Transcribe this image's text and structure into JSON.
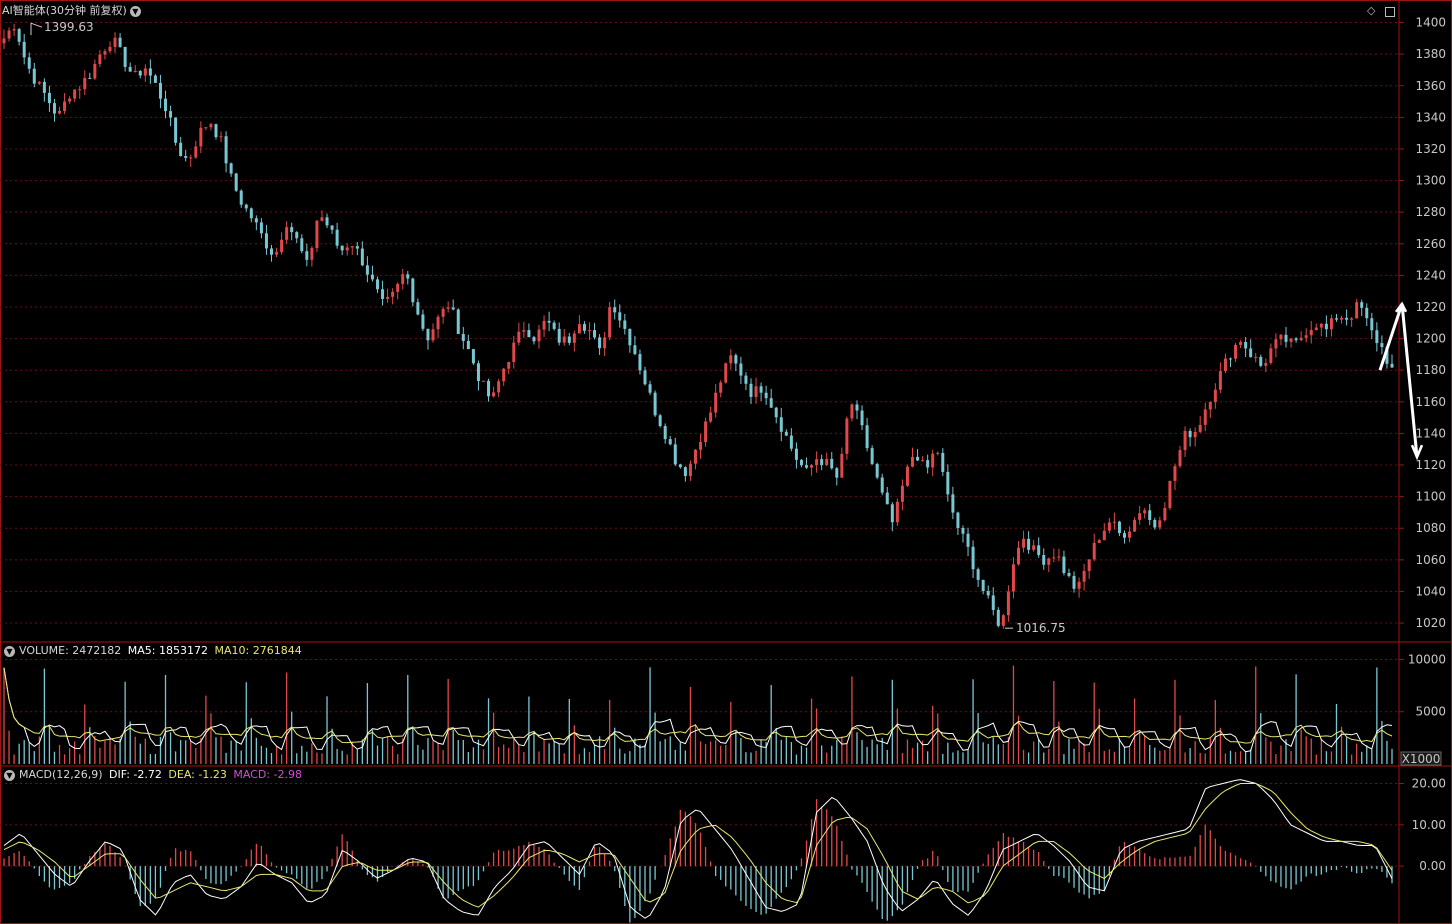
{
  "header": {
    "title": "AI智能体(30分钟 前复权)",
    "dropdown_icon": "chevron-down-icon"
  },
  "controls": {
    "diamond_icon": "diamond-icon",
    "window_icon": "window-toggle-icon"
  },
  "colors": {
    "up": "#e0484a",
    "down": "#78c8d4",
    "grid": "#6a1010",
    "frame": "#a01414",
    "axis_text": "#c8c8c8",
    "ma5": "#ffffff",
    "ma10": "#e8e870",
    "macd_label": "#d050d0"
  },
  "chart_data": [
    {
      "type": "candlestick",
      "name": "price",
      "yticks": [
        1020,
        1040,
        1060,
        1080,
        1100,
        1120,
        1140,
        1160,
        1180,
        1200,
        1220,
        1240,
        1260,
        1280,
        1300,
        1320,
        1340,
        1360,
        1380,
        1400
      ],
      "ylim": [
        1008,
        1413
      ],
      "max_label": "1399.63",
      "min_label": "1016.75",
      "close_path": [
        1390,
        1399.6,
        1375,
        1362,
        1352,
        1340,
        1355,
        1360,
        1368,
        1382,
        1390,
        1377,
        1365,
        1372,
        1360,
        1345,
        1320,
        1312,
        1330,
        1338,
        1325,
        1300,
        1285,
        1275,
        1262,
        1252,
        1275,
        1262,
        1245,
        1280,
        1270,
        1255,
        1262,
        1250,
        1235,
        1220,
        1228,
        1243,
        1220,
        1200,
        1212,
        1222,
        1205,
        1190,
        1172,
        1160,
        1180,
        1195,
        1208,
        1200,
        1212,
        1200,
        1198,
        1213,
        1205,
        1190,
        1225,
        1210,
        1195,
        1175,
        1155,
        1140,
        1122,
        1115,
        1135,
        1150,
        1172,
        1188,
        1178,
        1165,
        1170,
        1155,
        1140,
        1125,
        1115,
        1125,
        1120,
        1110,
        1162,
        1145,
        1122,
        1100,
        1082,
        1110,
        1130,
        1115,
        1132,
        1100,
        1080,
        1065,
        1045,
        1030,
        1017,
        1058,
        1075,
        1065,
        1060,
        1065,
        1050,
        1040,
        1060,
        1075,
        1085,
        1075,
        1082,
        1095,
        1080,
        1095,
        1120,
        1140,
        1142,
        1160,
        1175,
        1190,
        1200,
        1190,
        1182,
        1195,
        1200,
        1195,
        1205,
        1210,
        1205,
        1215,
        1213,
        1222,
        1205,
        1195,
        1180
      ],
      "arrows": [
        [
          1180,
          1222
        ],
        [
          1222,
          1125
        ]
      ]
    },
    {
      "type": "volume",
      "name": "VOLUME",
      "label": "VOLUME: 2472182",
      "ma5_label": "MA5: 1853172",
      "ma10_label": "MA10: 2761844",
      "yticks": [
        5000,
        10000
      ],
      "ylim": [
        0,
        11000
      ],
      "unit": "X1000"
    },
    {
      "type": "macd",
      "name": "MACD",
      "label": "MACD(12,26,9)",
      "dif_label": "DIF: -2.72",
      "dea_label": "DEA: -1.23",
      "macd_label": "MACD: -2.98",
      "yticks": [
        "0.00",
        "10.00",
        "20.00"
      ],
      "ylim": [
        -14,
        24
      ],
      "dif_path": [
        5,
        8,
        3,
        -2,
        -5,
        1,
        6,
        4,
        -8,
        -12,
        -4,
        -2,
        -7,
        -8,
        -5,
        1,
        -2,
        -4,
        -9,
        -7,
        4,
        1,
        -3,
        -1,
        2,
        1,
        -8,
        -11,
        -12,
        -5,
        -1,
        5,
        6,
        2,
        -2,
        6,
        3,
        -10,
        -13,
        -6,
        11,
        14,
        9,
        4,
        -3,
        -10,
        -11,
        -9,
        13,
        17,
        12,
        6,
        -5,
        -11,
        -8,
        -3,
        -9,
        -12,
        -6,
        4,
        6,
        8,
        5,
        1,
        -5,
        -6,
        4,
        6,
        7,
        8,
        9,
        19,
        20,
        21,
        20,
        16,
        10,
        8,
        6,
        6,
        5,
        5,
        -3
      ],
      "dea_path": [
        4,
        6,
        4,
        1,
        -3,
        0,
        3,
        3,
        -3,
        -8,
        -6,
        -4,
        -5,
        -6,
        -5,
        -2,
        -2,
        -3,
        -6,
        -6,
        0,
        1,
        -1,
        -1,
        1,
        1,
        -4,
        -8,
        -10,
        -7,
        -3,
        2,
        4,
        3,
        1,
        3,
        3,
        -3,
        -9,
        -7,
        4,
        9,
        10,
        7,
        2,
        -4,
        -8,
        -9,
        5,
        11,
        12,
        9,
        2,
        -6,
        -8,
        -5,
        -6,
        -9,
        -7,
        0,
        3,
        6,
        6,
        3,
        -1,
        -3,
        1,
        4,
        6,
        7,
        8,
        14,
        18,
        20,
        20,
        18,
        13,
        9,
        7,
        6,
        6,
        5,
        -1
      ]
    }
  ]
}
